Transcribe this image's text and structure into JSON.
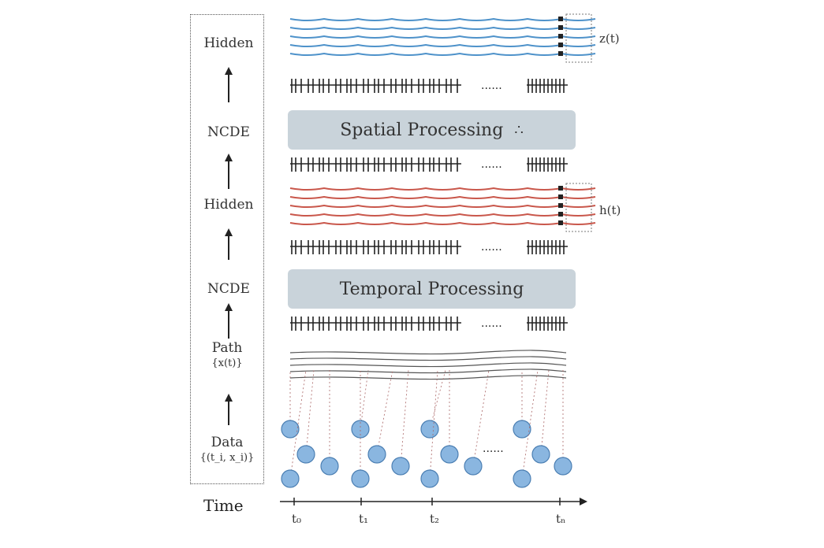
{
  "left_axis": {
    "hidden_top": "Hidden",
    "ncde_top": "NCDE",
    "hidden_mid": "Hidden",
    "ncde_bottom": "NCDE",
    "path_line1": "Path",
    "path_line2": "{x(t)}",
    "data_line1": "Data",
    "data_line2": "{(t_i, x_i)}"
  },
  "boxes": {
    "spatial": "Spatial Processing",
    "spatial_icon": "graph-icon",
    "temporal": "Temporal Processing"
  },
  "annotations": {
    "top_z": "z(t)",
    "mid_z": "h(t)"
  },
  "time_axis": {
    "label": "Time",
    "ticks": [
      "t₀",
      "t₁",
      "t₂",
      "tₙ"
    ]
  },
  "ellipsis": "......",
  "colors": {
    "hidden_top": "#2f7fc1",
    "hidden_mid": "#c0392b",
    "box_fill": "#c9d3da",
    "node_fill": "#8ab6e0"
  }
}
